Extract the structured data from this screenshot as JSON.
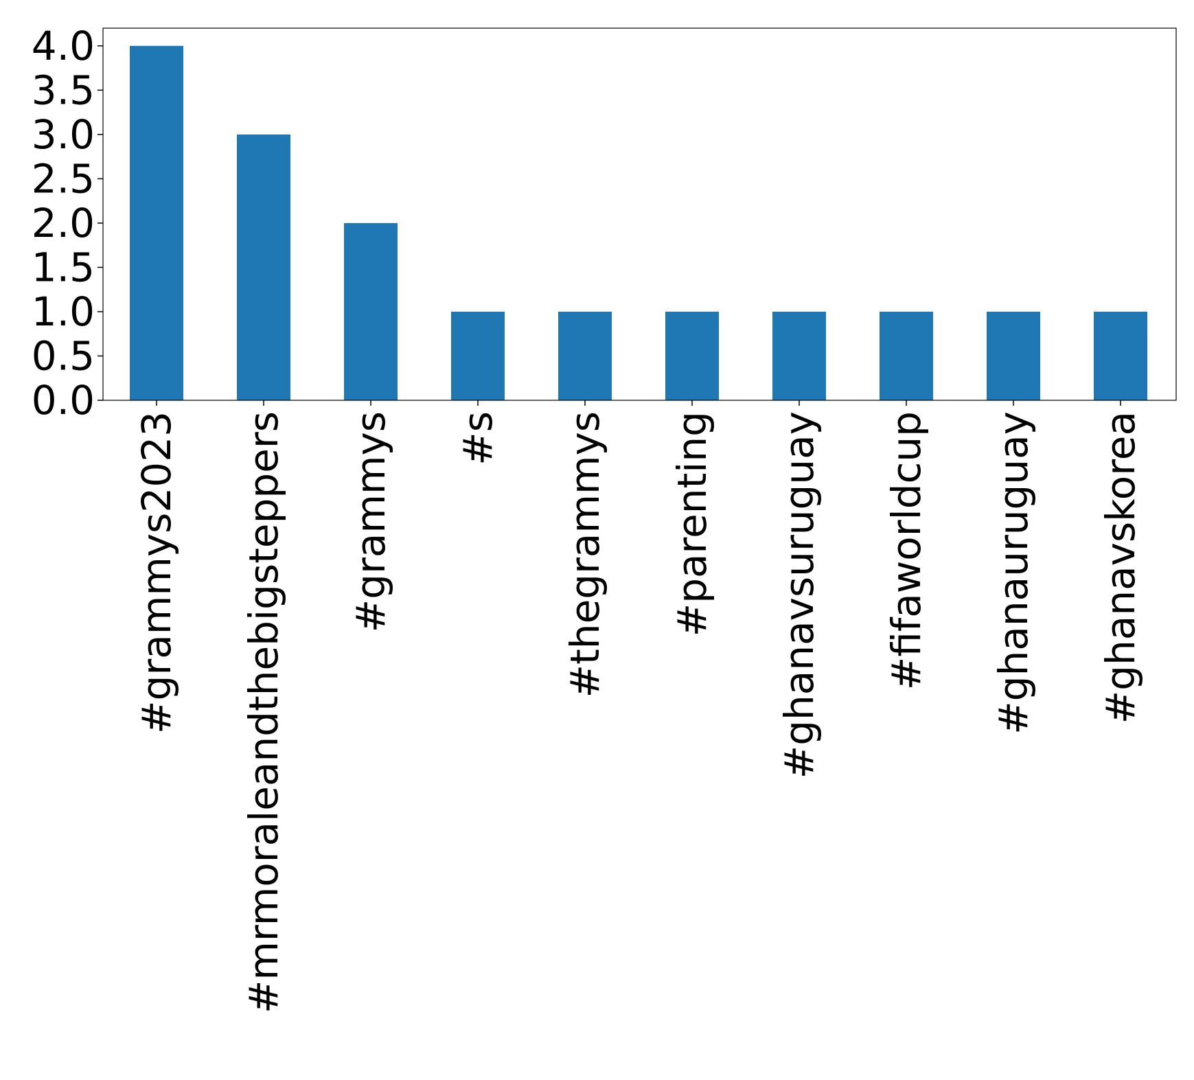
{
  "chart_data": {
    "type": "bar",
    "categories": [
      "#grammys2023",
      "#mrmoraleandthebigsteppers",
      "#grammys",
      "#s",
      "#thegrammys",
      "#parenting",
      "#ghanavsuruguay",
      "#fifaworldcup",
      "#ghanauruguay",
      "#ghanavskorea"
    ],
    "values": [
      4,
      3,
      2,
      1,
      1,
      1,
      1,
      1,
      1,
      1
    ],
    "yticks": [
      "0.0",
      "0.5",
      "1.0",
      "1.5",
      "2.0",
      "2.5",
      "3.0",
      "3.5",
      "4.0"
    ],
    "ylim": [
      0,
      4.2
    ],
    "bar_color": "#1f77b4",
    "grid": false,
    "legend": false
  }
}
